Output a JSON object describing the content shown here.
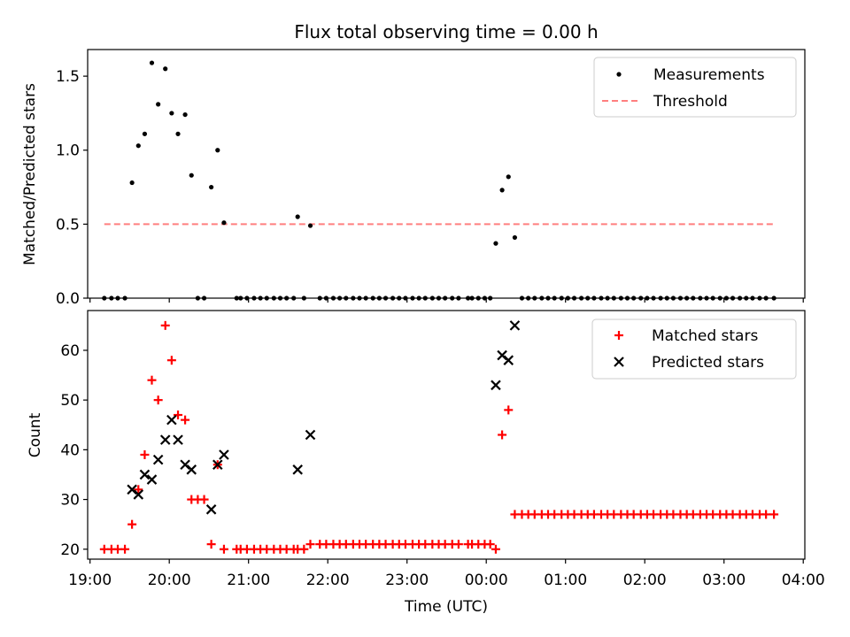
{
  "title": "Flux total observing time = 0.00 h",
  "colors": {
    "measurements": "#000000",
    "threshold": "#ff7f7f",
    "matched": "#ff0000",
    "predicted": "#000000"
  },
  "chart_data": [
    {
      "type": "scatter",
      "title": "Flux total observing time = 0.00 h",
      "xlabel": "",
      "ylabel": "Matched/Predicted stars",
      "xlim": [
        18.97,
        28.02
      ],
      "ylim": [
        0,
        1.68
      ],
      "grid": false,
      "legend_position": "top-right",
      "yticks": [
        0.0,
        0.5,
        1.0,
        1.5
      ],
      "ytick_labels": [
        "0.0",
        "0.5",
        "1.0",
        "1.5"
      ],
      "threshold": {
        "name": "Threshold",
        "y": 0.5,
        "x_range": [
          19.18,
          27.63
        ]
      },
      "series": [
        {
          "name": "Measurements",
          "marker": "dot",
          "points": [
            [
              19.18,
              0
            ],
            [
              19.27,
              0
            ],
            [
              19.35,
              0
            ],
            [
              19.44,
              0
            ],
            [
              19.53,
              0.78
            ],
            [
              19.61,
              1.03
            ],
            [
              19.69,
              1.11
            ],
            [
              19.78,
              1.59
            ],
            [
              19.86,
              1.31
            ],
            [
              19.95,
              1.55
            ],
            [
              20.03,
              1.25
            ],
            [
              20.11,
              1.11
            ],
            [
              20.2,
              1.24
            ],
            [
              20.28,
              0.83
            ],
            [
              20.36,
              0
            ],
            [
              20.44,
              0
            ],
            [
              20.53,
              0.75
            ],
            [
              20.61,
              1.0
            ],
            [
              20.69,
              0.51
            ],
            [
              20.85,
              0
            ],
            [
              20.9,
              0
            ],
            [
              20.98,
              0
            ],
            [
              21.07,
              0
            ],
            [
              21.15,
              0
            ],
            [
              21.23,
              0
            ],
            [
              21.32,
              0
            ],
            [
              21.4,
              0
            ],
            [
              21.48,
              0
            ],
            [
              21.57,
              0
            ],
            [
              21.62,
              0.55
            ],
            [
              21.7,
              0
            ],
            [
              21.78,
              0.49
            ],
            [
              21.9,
              0
            ],
            [
              21.98,
              0
            ],
            [
              22.07,
              0
            ],
            [
              22.15,
              0
            ],
            [
              22.23,
              0
            ],
            [
              22.32,
              0
            ],
            [
              22.4,
              0
            ],
            [
              22.48,
              0
            ],
            [
              22.57,
              0
            ],
            [
              22.65,
              0
            ],
            [
              22.73,
              0
            ],
            [
              22.82,
              0
            ],
            [
              22.9,
              0
            ],
            [
              22.98,
              0
            ],
            [
              23.07,
              0
            ],
            [
              23.15,
              0
            ],
            [
              23.23,
              0
            ],
            [
              23.32,
              0
            ],
            [
              23.4,
              0
            ],
            [
              23.48,
              0
            ],
            [
              23.57,
              0
            ],
            [
              23.65,
              0
            ],
            [
              23.77,
              0
            ],
            [
              23.82,
              0
            ],
            [
              23.9,
              0
            ],
            [
              23.98,
              0
            ],
            [
              24.05,
              0
            ],
            [
              24.12,
              0.37
            ],
            [
              24.2,
              0.73
            ],
            [
              24.28,
              0.82
            ],
            [
              24.36,
              0.41
            ],
            [
              24.45,
              0
            ],
            [
              24.53,
              0
            ],
            [
              24.61,
              0
            ],
            [
              24.7,
              0
            ],
            [
              24.78,
              0
            ],
            [
              24.86,
              0
            ],
            [
              24.95,
              0
            ],
            [
              25.03,
              0
            ],
            [
              25.11,
              0
            ],
            [
              25.2,
              0
            ],
            [
              25.28,
              0
            ],
            [
              25.36,
              0
            ],
            [
              25.45,
              0
            ],
            [
              25.53,
              0
            ],
            [
              25.61,
              0
            ],
            [
              25.7,
              0
            ],
            [
              25.78,
              0
            ],
            [
              25.86,
              0
            ],
            [
              25.95,
              0
            ],
            [
              26.03,
              0
            ],
            [
              26.11,
              0
            ],
            [
              26.2,
              0
            ],
            [
              26.28,
              0
            ],
            [
              26.36,
              0
            ],
            [
              26.45,
              0
            ],
            [
              26.53,
              0
            ],
            [
              26.61,
              0
            ],
            [
              26.7,
              0
            ],
            [
              26.78,
              0
            ],
            [
              26.86,
              0
            ],
            [
              26.95,
              0
            ],
            [
              27.03,
              0
            ],
            [
              27.11,
              0
            ],
            [
              27.2,
              0
            ],
            [
              27.28,
              0
            ],
            [
              27.36,
              0
            ],
            [
              27.45,
              0
            ],
            [
              27.53,
              0
            ],
            [
              27.63,
              0
            ]
          ]
        }
      ]
    },
    {
      "type": "scatter",
      "xlabel": "Time (UTC)",
      "ylabel": "Count",
      "xlim": [
        18.97,
        28.02
      ],
      "ylim": [
        18.0,
        68.0
      ],
      "grid": false,
      "legend_position": "top-right",
      "xticks": [
        19,
        20,
        21,
        22,
        23,
        24,
        25,
        26,
        27,
        28
      ],
      "xtick_labels": [
        "19:00",
        "20:00",
        "21:00",
        "22:00",
        "23:00",
        "00:00",
        "01:00",
        "02:00",
        "03:00",
        "04:00"
      ],
      "yticks": [
        20,
        30,
        40,
        50,
        60
      ],
      "ytick_labels": [
        "20",
        "30",
        "40",
        "50",
        "60"
      ],
      "series": [
        {
          "name": "Matched stars",
          "marker": "plus",
          "points": [
            [
              19.18,
              20
            ],
            [
              19.27,
              20
            ],
            [
              19.35,
              20
            ],
            [
              19.44,
              20
            ],
            [
              19.53,
              25
            ],
            [
              19.61,
              32
            ],
            [
              19.69,
              39
            ],
            [
              19.78,
              54
            ],
            [
              19.86,
              50
            ],
            [
              19.95,
              65
            ],
            [
              20.03,
              58
            ],
            [
              20.11,
              47
            ],
            [
              20.2,
              46
            ],
            [
              20.28,
              30
            ],
            [
              20.36,
              30
            ],
            [
              20.44,
              30
            ],
            [
              20.53,
              21
            ],
            [
              20.61,
              37
            ],
            [
              20.69,
              20
            ],
            [
              20.85,
              20
            ],
            [
              20.9,
              20
            ],
            [
              20.98,
              20
            ],
            [
              21.07,
              20
            ],
            [
              21.15,
              20
            ],
            [
              21.23,
              20
            ],
            [
              21.32,
              20
            ],
            [
              21.4,
              20
            ],
            [
              21.48,
              20
            ],
            [
              21.57,
              20
            ],
            [
              21.62,
              20
            ],
            [
              21.7,
              20
            ],
            [
              21.78,
              21
            ],
            [
              21.9,
              21
            ],
            [
              21.98,
              21
            ],
            [
              22.07,
              21
            ],
            [
              22.15,
              21
            ],
            [
              22.23,
              21
            ],
            [
              22.32,
              21
            ],
            [
              22.4,
              21
            ],
            [
              22.48,
              21
            ],
            [
              22.57,
              21
            ],
            [
              22.65,
              21
            ],
            [
              22.73,
              21
            ],
            [
              22.82,
              21
            ],
            [
              22.9,
              21
            ],
            [
              22.98,
              21
            ],
            [
              23.07,
              21
            ],
            [
              23.15,
              21
            ],
            [
              23.23,
              21
            ],
            [
              23.32,
              21
            ],
            [
              23.4,
              21
            ],
            [
              23.48,
              21
            ],
            [
              23.57,
              21
            ],
            [
              23.65,
              21
            ],
            [
              23.77,
              21
            ],
            [
              23.82,
              21
            ],
            [
              23.9,
              21
            ],
            [
              23.98,
              21
            ],
            [
              24.05,
              21
            ],
            [
              24.12,
              20
            ],
            [
              24.2,
              43
            ],
            [
              24.28,
              48
            ],
            [
              24.36,
              27
            ],
            [
              24.45,
              27
            ],
            [
              24.53,
              27
            ],
            [
              24.61,
              27
            ],
            [
              24.7,
              27
            ],
            [
              24.78,
              27
            ],
            [
              24.86,
              27
            ],
            [
              24.95,
              27
            ],
            [
              25.03,
              27
            ],
            [
              25.11,
              27
            ],
            [
              25.2,
              27
            ],
            [
              25.28,
              27
            ],
            [
              25.36,
              27
            ],
            [
              25.45,
              27
            ],
            [
              25.53,
              27
            ],
            [
              25.61,
              27
            ],
            [
              25.7,
              27
            ],
            [
              25.78,
              27
            ],
            [
              25.86,
              27
            ],
            [
              25.95,
              27
            ],
            [
              26.03,
              27
            ],
            [
              26.11,
              27
            ],
            [
              26.2,
              27
            ],
            [
              26.28,
              27
            ],
            [
              26.36,
              27
            ],
            [
              26.45,
              27
            ],
            [
              26.53,
              27
            ],
            [
              26.61,
              27
            ],
            [
              26.7,
              27
            ],
            [
              26.78,
              27
            ],
            [
              26.86,
              27
            ],
            [
              26.95,
              27
            ],
            [
              27.03,
              27
            ],
            [
              27.11,
              27
            ],
            [
              27.2,
              27
            ],
            [
              27.28,
              27
            ],
            [
              27.36,
              27
            ],
            [
              27.45,
              27
            ],
            [
              27.53,
              27
            ],
            [
              27.63,
              27
            ]
          ]
        },
        {
          "name": "Predicted stars",
          "marker": "x",
          "points": [
            [
              19.53,
              32
            ],
            [
              19.61,
              31
            ],
            [
              19.69,
              35
            ],
            [
              19.78,
              34
            ],
            [
              19.86,
              38
            ],
            [
              19.95,
              42
            ],
            [
              20.03,
              46
            ],
            [
              20.11,
              42
            ],
            [
              20.2,
              37
            ],
            [
              20.28,
              36
            ],
            [
              20.53,
              28
            ],
            [
              20.61,
              37
            ],
            [
              20.69,
              39
            ],
            [
              21.62,
              36
            ],
            [
              21.78,
              43
            ],
            [
              24.12,
              53
            ],
            [
              24.2,
              59
            ],
            [
              24.28,
              58
            ],
            [
              24.36,
              65
            ]
          ]
        }
      ]
    }
  ]
}
